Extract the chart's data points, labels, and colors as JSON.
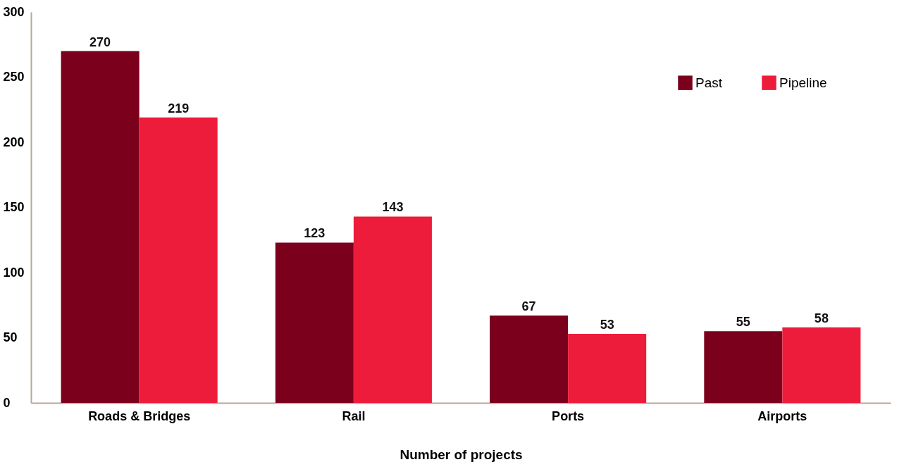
{
  "chart_data": {
    "type": "bar",
    "xlabel": "Number of projects",
    "categories": [
      "Roads & Bridges",
      "Rail",
      "Ports",
      "Airports"
    ],
    "series": [
      {
        "name": "Past",
        "color": "#7b001c",
        "values": [
          270,
          123,
          67,
          55
        ]
      },
      {
        "name": "Pipeline",
        "color": "#ed1c3a",
        "values": [
          219,
          143,
          53,
          58
        ]
      }
    ],
    "ylim": [
      0,
      300
    ],
    "yticks": [
      0,
      50,
      100,
      150,
      200,
      250,
      300
    ],
    "grid": false,
    "legend": "top right",
    "data_labels": true
  }
}
